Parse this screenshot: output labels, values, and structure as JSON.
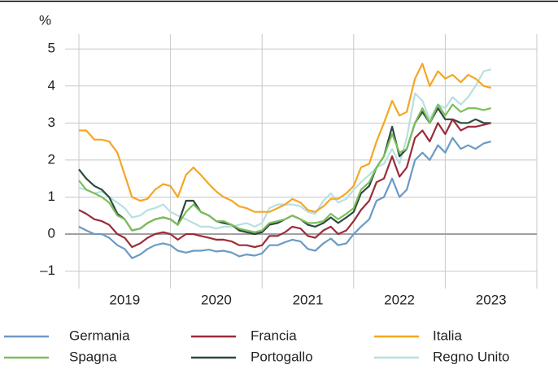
{
  "chart_data": {
    "type": "line",
    "y_label": "%",
    "x": [
      2019,
      2019.08,
      2019.17,
      2019.25,
      2019.33,
      2019.42,
      2019.5,
      2019.58,
      2019.67,
      2019.75,
      2019.83,
      2019.92,
      2020,
      2020.08,
      2020.17,
      2020.25,
      2020.33,
      2020.42,
      2020.5,
      2020.58,
      2020.67,
      2020.75,
      2020.83,
      2020.92,
      2021,
      2021.08,
      2021.17,
      2021.25,
      2021.33,
      2021.42,
      2021.5,
      2021.58,
      2021.67,
      2021.75,
      2021.83,
      2021.92,
      2022,
      2022.08,
      2022.17,
      2022.25,
      2022.33,
      2022.42,
      2022.5,
      2022.58,
      2022.67,
      2022.75,
      2022.83,
      2022.92,
      2023,
      2023.08,
      2023.17,
      2023.25,
      2023.33,
      2023.42,
      2023.5
    ],
    "series": [
      {
        "name": "Germania",
        "color": "#6b9ac4",
        "values": [
          0.2,
          0.1,
          0.0,
          0.0,
          -0.1,
          -0.3,
          -0.4,
          -0.65,
          -0.55,
          -0.4,
          -0.3,
          -0.25,
          -0.3,
          -0.45,
          -0.5,
          -0.45,
          -0.45,
          -0.42,
          -0.47,
          -0.45,
          -0.5,
          -0.6,
          -0.55,
          -0.58,
          -0.52,
          -0.3,
          -0.3,
          -0.22,
          -0.15,
          -0.2,
          -0.4,
          -0.45,
          -0.25,
          -0.12,
          -0.3,
          -0.25,
          0.0,
          0.2,
          0.4,
          0.9,
          1.0,
          1.5,
          1.0,
          1.2,
          2.0,
          2.2,
          2.0,
          2.4,
          2.2,
          2.6,
          2.3,
          2.4,
          2.3,
          2.45,
          2.5
        ]
      },
      {
        "name": "Francia",
        "color": "#9b2c3a",
        "values": [
          0.65,
          0.55,
          0.4,
          0.35,
          0.25,
          0.0,
          -0.1,
          -0.35,
          -0.25,
          -0.1,
          0.0,
          0.05,
          0.0,
          -0.15,
          0.0,
          0.0,
          -0.05,
          -0.1,
          -0.15,
          -0.15,
          -0.2,
          -0.3,
          -0.3,
          -0.35,
          -0.3,
          -0.05,
          -0.05,
          0.05,
          0.2,
          0.15,
          -0.05,
          -0.1,
          0.1,
          0.2,
          0.0,
          0.1,
          0.35,
          0.65,
          0.9,
          1.4,
          1.5,
          2.1,
          1.55,
          1.8,
          2.6,
          2.8,
          2.5,
          3.0,
          2.7,
          3.1,
          2.8,
          2.9,
          2.9,
          2.95,
          3.0
        ]
      },
      {
        "name": "Italia",
        "color": "#f5a623",
        "values": [
          2.8,
          2.8,
          2.55,
          2.55,
          2.5,
          2.2,
          1.6,
          1.0,
          0.9,
          0.95,
          1.2,
          1.35,
          1.3,
          1.0,
          1.6,
          1.8,
          1.6,
          1.35,
          1.15,
          1.0,
          0.9,
          0.75,
          0.7,
          0.6,
          0.6,
          0.6,
          0.7,
          0.8,
          0.95,
          0.85,
          0.65,
          0.6,
          0.75,
          0.95,
          0.95,
          1.1,
          1.3,
          1.8,
          1.9,
          2.5,
          3.0,
          3.6,
          3.2,
          3.3,
          4.2,
          4.6,
          4.0,
          4.4,
          4.2,
          4.3,
          4.1,
          4.3,
          4.2,
          4.0,
          3.95
        ]
      },
      {
        "name": "Spagna",
        "color": "#7cbf5a",
        "values": [
          1.45,
          1.2,
          1.1,
          1.0,
          0.85,
          0.5,
          0.4,
          0.1,
          0.15,
          0.3,
          0.4,
          0.45,
          0.4,
          0.25,
          0.6,
          0.8,
          0.6,
          0.5,
          0.35,
          0.35,
          0.25,
          0.15,
          0.1,
          0.05,
          0.1,
          0.3,
          0.35,
          0.4,
          0.5,
          0.4,
          0.3,
          0.3,
          0.35,
          0.55,
          0.4,
          0.55,
          0.7,
          1.2,
          1.4,
          1.8,
          2.1,
          2.7,
          2.2,
          2.3,
          3.0,
          3.4,
          3.0,
          3.5,
          3.2,
          3.5,
          3.3,
          3.4,
          3.4,
          3.35,
          3.4
        ]
      },
      {
        "name": "Portogallo",
        "color": "#2d4a3e",
        "values": [
          1.75,
          1.5,
          1.3,
          1.2,
          1.0,
          0.55,
          0.4,
          0.1,
          0.15,
          0.3,
          0.4,
          0.45,
          0.4,
          0.25,
          0.9,
          0.9,
          0.6,
          0.5,
          0.35,
          0.3,
          0.25,
          0.1,
          0.05,
          0.0,
          0.05,
          0.25,
          0.3,
          0.4,
          0.5,
          0.4,
          0.25,
          0.2,
          0.3,
          0.45,
          0.3,
          0.45,
          0.6,
          1.1,
          1.3,
          1.8,
          2.1,
          2.9,
          2.1,
          2.3,
          3.0,
          3.3,
          3.0,
          3.4,
          3.1,
          3.1,
          3.0,
          3.0,
          3.1,
          3.0,
          3.0
        ]
      },
      {
        "name": "Regno Unito",
        "color": "#b8e0e0",
        "values": [
          1.25,
          1.2,
          1.1,
          1.15,
          1.0,
          0.85,
          0.7,
          0.45,
          0.5,
          0.65,
          0.7,
          0.8,
          0.6,
          0.5,
          0.4,
          0.3,
          0.2,
          0.2,
          0.15,
          0.2,
          0.2,
          0.25,
          0.3,
          0.2,
          0.3,
          0.7,
          0.8,
          0.8,
          0.8,
          0.75,
          0.6,
          0.55,
          0.9,
          1.1,
          0.85,
          0.95,
          1.2,
          1.4,
          1.6,
          1.8,
          1.9,
          2.3,
          1.9,
          2.6,
          3.8,
          3.6,
          3.1,
          3.5,
          3.4,
          3.7,
          3.5,
          3.7,
          4.0,
          4.4,
          4.45
        ]
      }
    ],
    "xlim": [
      2019,
      2024
    ],
    "xticks": [
      {
        "value": 2019.5,
        "label": "2019"
      },
      {
        "value": 2020.5,
        "label": "2020"
      },
      {
        "value": 2021.5,
        "label": "2021"
      },
      {
        "value": 2022.5,
        "label": "2022"
      },
      {
        "value": 2023.5,
        "label": "2023"
      }
    ],
    "xgrid": [
      2019,
      2020,
      2021,
      2022,
      2023,
      2024
    ],
    "ylim": [
      -1.47,
      5.4
    ],
    "yticks": [
      {
        "value": -1,
        "label": "–1"
      },
      0,
      1,
      2,
      3,
      4,
      5
    ],
    "grid": true,
    "legend": "bottom"
  }
}
